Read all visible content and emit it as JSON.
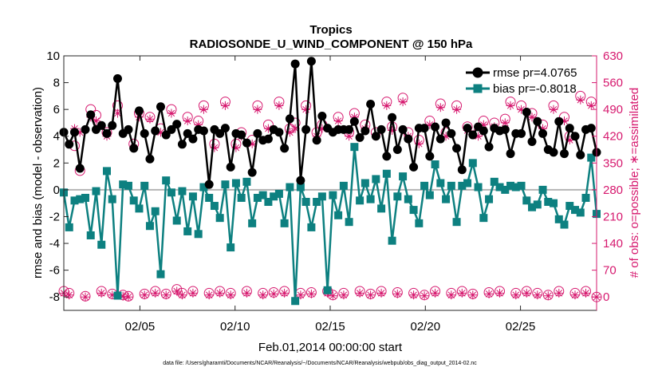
{
  "chart_data": {
    "type": "line",
    "title": "Tropics",
    "subtitle": "RADIOSONDE_U_WIND_COMPONENT @ 150 hPa",
    "xlabel": "Feb.01,2014 00:00:00 start",
    "ylabel": "rmse and bias (model - observation)",
    "ylabel_right": "# of obs: o=possible; ∗=assimilated",
    "xlim": [
      1,
      29
    ],
    "ylim": [
      -9,
      10
    ],
    "ylim_right": [
      -35,
      630
    ],
    "xticks": [
      5,
      10,
      15,
      20,
      25
    ],
    "xtick_labels": [
      "02/05",
      "02/10",
      "02/15",
      "02/20",
      "02/25"
    ],
    "yticks": [
      -8,
      -6,
      -4,
      -2,
      0,
      2,
      4,
      6,
      8,
      10
    ],
    "yticks_right": [
      0,
      70,
      140,
      210,
      280,
      350,
      420,
      490,
      560,
      630
    ],
    "colors": {
      "rmse": "#000000",
      "bias": "#0d8080",
      "obs": "#d6186e",
      "zero_line": "#b4b4b4"
    },
    "footnote": "data file: /Users/gharamti/Documents/NCAR/Reanalysis/~/Documents/NCAR/Reanalysis/webpub/obs_diag_output_2014-02.nc",
    "series": [
      {
        "name": "rmse",
        "legend": "rmse pr=4.0765",
        "axis": "left",
        "values": [
          4.3,
          3.4,
          4.3,
          1.6,
          4.5,
          5.6,
          4.5,
          4.8,
          4.2,
          4.8,
          8.3,
          4.2,
          4.5,
          3.1,
          5.9,
          4.2,
          2.3,
          4.4,
          6.2,
          4.1,
          4.5,
          4.9,
          3.4,
          4.2,
          3.8,
          4.5,
          4.4,
          0.4,
          4.5,
          4.2,
          4.6,
          1.7,
          4.2,
          4.1,
          3.5,
          1.3,
          4.2,
          3.7,
          3.8,
          4.5,
          4.3,
          3.1,
          5.3,
          9.4,
          0.7,
          4.5,
          9.6,
          3.7,
          5.5,
          4.6,
          4.3,
          4.5,
          4.5,
          4.5,
          5.1,
          3.9,
          4.4,
          6.4,
          4.0,
          4.5,
          2.5,
          5.4,
          3.0,
          4.5,
          3.8,
          1.7,
          4.6,
          4.6,
          2.5,
          4.7,
          3.8,
          5.0,
          4.2,
          3.1,
          1.5,
          4.6,
          4.1,
          4.7,
          4.4,
          3.2,
          4.6,
          4.4,
          4.5,
          2.7,
          4.2,
          4.2,
          5.8,
          3.6,
          5.1,
          4.2,
          3.0,
          2.8,
          5.1,
          2.7,
          4.6,
          4.0,
          2.6,
          4.5,
          4.6,
          2.8
        ]
      },
      {
        "name": "bias",
        "legend": "bias pr=-0.8018",
        "axis": "left",
        "values": [
          -0.2,
          -2.8,
          -0.8,
          -0.7,
          -0.6,
          -3.4,
          -0.1,
          -4.1,
          1.4,
          -0.7,
          -7.9,
          0.4,
          0.3,
          -0.8,
          -1.4,
          0.3,
          -2.7,
          -1.6,
          -6.3,
          0.7,
          -0.2,
          -2.3,
          -0.1,
          -3.1,
          -0.5,
          -3.3,
          0.2,
          -0.6,
          -1.2,
          -2.1,
          0.4,
          -4.3,
          0.5,
          -0.6,
          0.6,
          -2.5,
          -0.6,
          -0.4,
          -0.9,
          -0.5,
          -0.3,
          -2.5,
          0.2,
          -8.3,
          0.2,
          -0.9,
          -2.8,
          -0.9,
          -0.5,
          -7.5,
          -0.4,
          -1.9,
          0.3,
          -2.4,
          3.2,
          -0.8,
          0.5,
          -0.7,
          0.8,
          -1.4,
          1.2,
          -3.8,
          -0.5,
          1.0,
          -0.7,
          -1.5,
          -2.5,
          0.3,
          -0.4,
          1.9,
          0.5,
          -0.7,
          0.3,
          -2.4,
          0.3,
          0.5,
          2.0,
          0.2,
          -2.1,
          -0.7,
          0.6,
          0.2,
          0.0,
          0.3,
          0.2,
          0.3,
          -0.8,
          -1.3,
          -1.1,
          0.0,
          -0.9,
          -1.0,
          -2.2,
          -2.6,
          -1.2,
          -1.5,
          -1.7,
          -0.6,
          2.4,
          -1.8
        ]
      },
      {
        "name": "obs possible",
        "axis": "right",
        "marker": "circle",
        "values": [
          15,
          10,
          395,
          330,
          2,
          490,
          475,
          15,
          430,
          8,
          500,
          5,
          2,
          400,
          480,
          8,
          470,
          15,
          440,
          8,
          490,
          20,
          10,
          470,
          15,
          460,
          500,
          10,
          400,
          15,
          510,
          10,
          400,
          430,
          15,
          410,
          500,
          10,
          450,
          12,
          510,
          15,
          440,
          455,
          10,
          500,
          12,
          430,
          450,
          15,
          5,
          470,
          10,
          430,
          480,
          15,
          450,
          8,
          430,
          15,
          510,
          445,
          12,
          520,
          430,
          10,
          410,
          5,
          460,
          15,
          505,
          430,
          10,
          500,
          15,
          445,
          8,
          430,
          460,
          12,
          455,
          15,
          465,
          510,
          10,
          500,
          15,
          480,
          10,
          450,
          5,
          500,
          15,
          470,
          420,
          10,
          525,
          15,
          510,
          0
        ]
      },
      {
        "name": "obs assimilated",
        "axis": "right",
        "marker": "asterisk",
        "values": [
          10,
          5,
          440,
          430,
          0,
          470,
          460,
          10,
          420,
          5,
          480,
          2,
          0,
          390,
          470,
          5,
          465,
          10,
          430,
          5,
          480,
          15,
          5,
          460,
          10,
          450,
          490,
          5,
          390,
          10,
          500,
          5,
          390,
          420,
          10,
          400,
          490,
          5,
          440,
          8,
          500,
          10,
          430,
          440,
          5,
          490,
          8,
          420,
          440,
          10,
          3,
          460,
          5,
          420,
          470,
          10,
          440,
          5,
          420,
          10,
          500,
          435,
          8,
          510,
          420,
          5,
          400,
          3,
          450,
          10,
          495,
          420,
          5,
          490,
          10,
          435,
          5,
          420,
          450,
          8,
          445,
          10,
          455,
          500,
          5,
          490,
          10,
          470,
          5,
          440,
          3,
          490,
          10,
          460,
          410,
          5,
          515,
          10,
          500,
          0
        ]
      }
    ]
  }
}
